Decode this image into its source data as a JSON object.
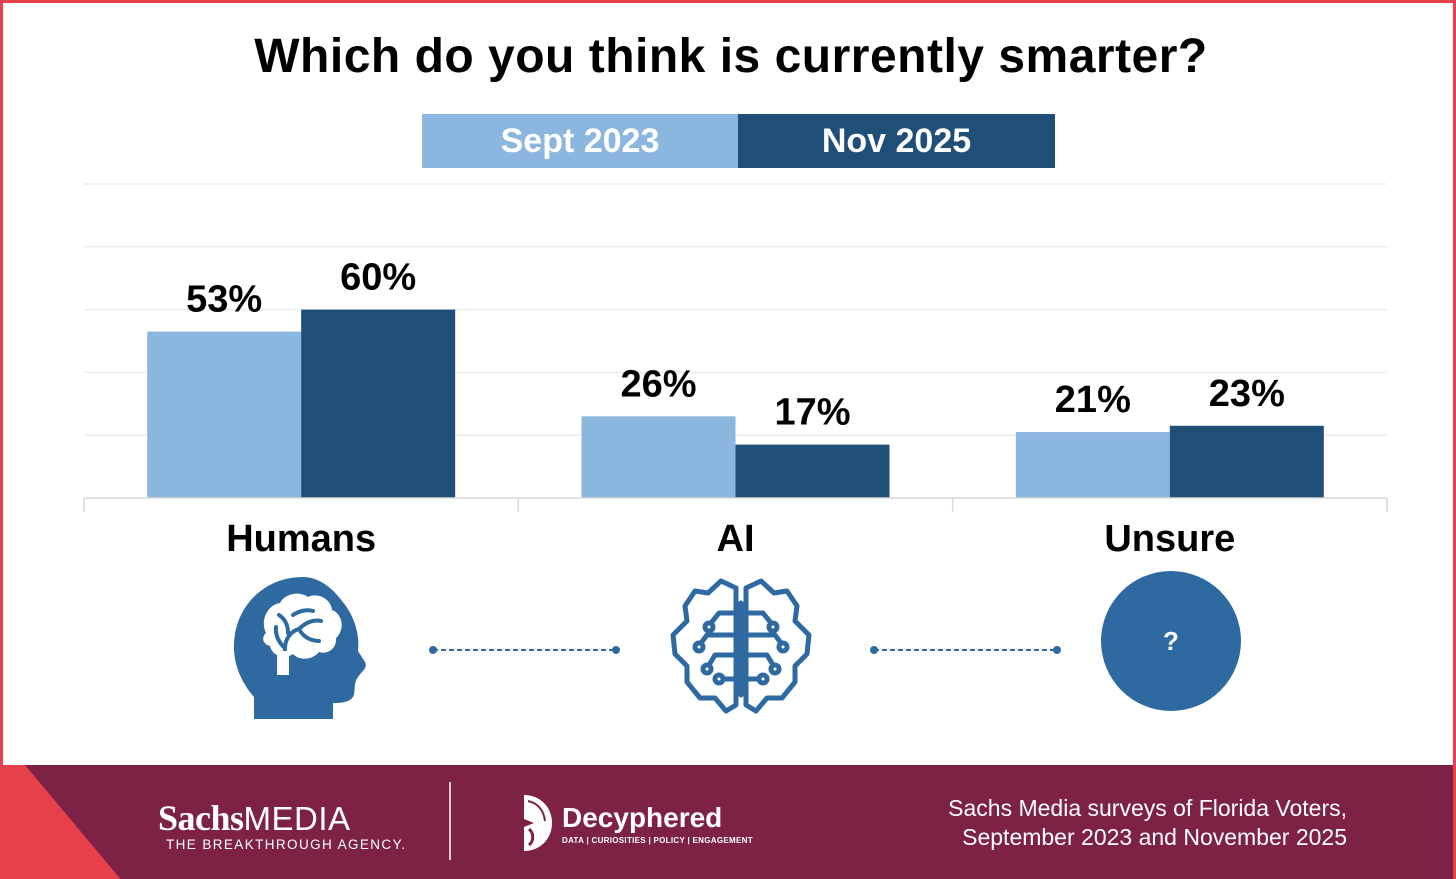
{
  "chart_data": {
    "type": "bar",
    "title": "Which do you think is currently smarter?",
    "categories": [
      "Humans",
      "AI",
      "Unsure"
    ],
    "series": [
      {
        "name": "Sept 2023",
        "values": [
          53,
          26,
          21
        ],
        "labels": [
          "53%",
          "26%",
          "21%"
        ]
      },
      {
        "name": "Nov 2025",
        "values": [
          60,
          17,
          23
        ],
        "labels": [
          "60%",
          "17%",
          "23%"
        ]
      }
    ],
    "ylim": [
      0,
      100
    ],
    "grid": true,
    "legend": "top-center",
    "xlabel": "",
    "ylabel": ""
  },
  "colors": {
    "sept_2023": "#8ab6e0",
    "nov_2025": "#1f4e79",
    "icon": "#2e6aa1",
    "footer_bg": "#7d2146",
    "accent_red": "#e8404a"
  },
  "icons": {
    "humans": "human-brain-head-icon",
    "ai": "ai-circuit-brain-icon",
    "unsure": "question-circle-icon",
    "unsure_symbol": "?"
  },
  "footer": {
    "sachs_brand_bold": "Sachs",
    "sachs_brand_light": "MEDIA",
    "sachs_tagline": "THE BREAKTHROUGH AGENCY.",
    "decyphered_name": "Decyphered",
    "decyphered_tagline": "DATA | CURIOSITIES | POLICY | ENGAGEMENT",
    "source_line1": "Sachs Media surveys of Florida Voters,",
    "source_line2": "September 2023 and November 2025"
  }
}
